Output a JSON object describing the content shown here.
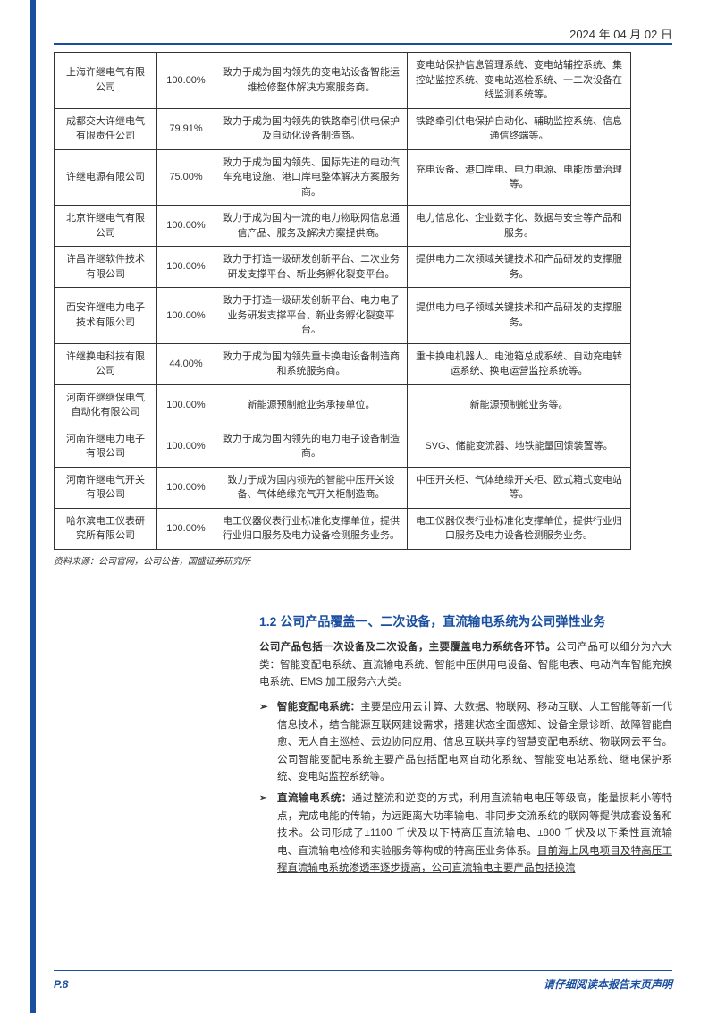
{
  "header": {
    "date": "2024 年 04 月 02 日"
  },
  "table": {
    "rows": [
      {
        "c1": "上海许继电气有限公司",
        "c2": "100.00%",
        "c3": "致力于成为国内领先的变电站设备智能运维检修整体解决方案服务商。",
        "c4": "变电站保护信息管理系统、变电站辅控系统、集控站监控系统、变电站巡检系统、一二次设备在线监测系统等。"
      },
      {
        "c1": "成都交大许继电气有限责任公司",
        "c2": "79.91%",
        "c3": "致力于成为国内领先的铁路牵引供电保护及自动化设备制造商。",
        "c4": "铁路牵引供电保护自动化、辅助监控系统、信息通信终端等。"
      },
      {
        "c1": "许继电源有限公司",
        "c2": "75.00%",
        "c3": "致力于成为国内领先、国际先进的电动汽车充电设施、港口岸电整体解决方案服务商。",
        "c4": "充电设备、港口岸电、电力电源、电能质量治理等。"
      },
      {
        "c1": "北京许继电气有限公司",
        "c2": "100.00%",
        "c3": "致力于成为国内一流的电力物联网信息通信产品、服务及解决方案提供商。",
        "c4": "电力信息化、企业数字化、数据与安全等产品和服务。"
      },
      {
        "c1": "许昌许继软件技术有限公司",
        "c2": "100.00%",
        "c3": "致力于打造一级研发创新平台、二次业务研发支撑平台、新业务孵化裂变平台。",
        "c4": "提供电力二次领域关键技术和产品研发的支撑服务。"
      },
      {
        "c1": "西安许继电力电子技术有限公司",
        "c2": "100.00%",
        "c3": "致力于打造一级研发创新平台、电力电子业务研发支撑平台、新业务孵化裂变平台。",
        "c4": "提供电力电子领域关键技术和产品研发的支撑服务。"
      },
      {
        "c1": "许继换电科技有限公司",
        "c2": "44.00%",
        "c3": "致力于成为国内领先重卡换电设备制造商和系统服务商。",
        "c4": "重卡换电机器人、电池箱总成系统、自动充电转运系统、换电运营监控系统等。"
      },
      {
        "c1": "河南许继继保电气自动化有限公司",
        "c2": "100.00%",
        "c3": "新能源预制舱业务承接单位。",
        "c4": "新能源预制舱业务等。"
      },
      {
        "c1": "河南许继电力电子有限公司",
        "c2": "100.00%",
        "c3": "致力于成为国内领先的电力电子设备制造商。",
        "c4": "SVG、储能变流器、地铁能量回馈装置等。"
      },
      {
        "c1": "河南许继电气开关有限公司",
        "c2": "100.00%",
        "c3": "致力于成为国内领先的智能中压开关设备、气体绝缘充气开关柜制造商。",
        "c4": "中压开关柜、气体绝缘开关柜、欧式箱式变电站等。"
      },
      {
        "c1": "哈尔滨电工仪表研究所有限公司",
        "c2": "100.00%",
        "c3": "电工仪器仪表行业标准化支撑单位，提供行业归口服务及电力设备检测服务业务。",
        "c4": "电工仪器仪表行业标准化支撑单位，提供行业归口服务及电力设备检测服务业务。"
      }
    ]
  },
  "source": "资料来源：公司官网，公司公告，国盛证券研究所",
  "section": {
    "title": "1.2 公司产品覆盖一、二次设备，直流输电系统为公司弹性业务",
    "para1_lead": "公司产品包括一次设备及二次设备，主要覆盖电力系统各环节。",
    "para1_rest": "公司产品可以细分为六大类：智能变配电系统、直流输电系统、智能中压供用电设备、智能电表、电动汽车智能充换电系统、EMS 加工服务六大类。",
    "bullet1_lead": "智能变配电系统：",
    "bullet1_body": "主要是应用云计算、大数据、物联网、移动互联、人工智能等新一代信息技术，结合能源互联网建设需求，搭建状态全面感知、设备全景诊断、故障智能自愈、无人自主巡检、云边协同应用、信息互联共享的智慧变配电系统、物联网云平台。",
    "bullet1_underline": "公司智能变配电系统主要产品包括配电网自动化系统、智能变电站系统、继电保护系统、变电站监控系统等。",
    "bullet2_lead": "直流输电系统：",
    "bullet2_body": "通过整流和逆变的方式，利用直流输电电压等级高，能量损耗小等特点，完成电能的传输，为远距离大功率输电、非同步交流系统的联网等提供成套设备和技术。公司形成了±1100 千伏及以下特高压直流输电、±800 千伏及以下柔性直流输电、直流输电检修和实验服务等构成的特高压业务体系。",
    "bullet2_underline": "目前海上风电项目及特高压工程直流输电系统渗透率逐步提高，公司直流输电主要产品包括换流"
  },
  "footer": {
    "page": "P.8",
    "note": "请仔细阅读本报告末页声明"
  }
}
